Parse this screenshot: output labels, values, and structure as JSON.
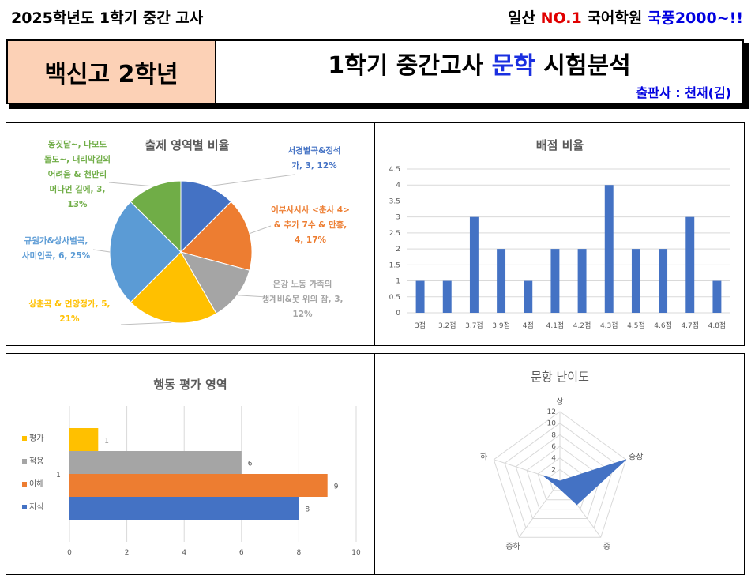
{
  "top": {
    "left_text": "2025학년도 1학기 중간 고사",
    "right_prefix": "일산 ",
    "right_brand": "NO.1",
    "right_mid": " 국어학원 ",
    "right_name": "국풍2000~!!"
  },
  "header": {
    "school": "백신고 2학년",
    "title_prefix": "1학기 중간고사 ",
    "title_subject": "문학",
    "title_suffix": " 시험분석",
    "publisher": "출판사 : 천재(김)"
  },
  "colors": {
    "blue": "#4472c4",
    "orange": "#ed7d31",
    "gray": "#a5a5a5",
    "yellow": "#ffc000",
    "lightblue": "#5b9bd5",
    "green": "#70ad47"
  },
  "chart_data": [
    {
      "type": "pie",
      "title": "출제 영역별 비율",
      "slices": [
        {
          "label_lines": [
            "서경별곡&정석",
            "가, 3, 12%"
          ],
          "value": 3,
          "color": "#4472c4"
        },
        {
          "label_lines": [
            "어부사시사 <춘사 4>",
            "& 추가 7수 & 만흥,",
            "4, 17%"
          ],
          "value": 4,
          "color": "#ed7d31"
        },
        {
          "label_lines": [
            "은강 노동 가족의",
            "생계비&못 위의 잠, 3,",
            "12%"
          ],
          "value": 3,
          "color": "#a5a5a5"
        },
        {
          "label_lines": [
            "상춘곡 & 면앙정가, 5,",
            "21%"
          ],
          "value": 5,
          "color": "#ffc000"
        },
        {
          "label_lines": [
            "규원가&상사별곡,",
            "사미인곡, 6, 25%"
          ],
          "value": 6,
          "color": "#5b9bd5"
        },
        {
          "label_lines": [
            "동짓달~, 나모도",
            "돌도~, 내리막길의",
            "어려움 & 천만리",
            "머나먼 길에, 3,",
            "13%"
          ],
          "value": 3,
          "color": "#70ad47"
        }
      ]
    },
    {
      "type": "bar",
      "title": "배점 비율",
      "categories": [
        "3점",
        "3.2점",
        "3.7점",
        "3.9점",
        "4점",
        "4.1점",
        "4.2점",
        "4.3점",
        "4.5점",
        "4.6점",
        "4.7점",
        "4.8점"
      ],
      "values": [
        1,
        1,
        3,
        2,
        1,
        2,
        2,
        4,
        2,
        2,
        3,
        1
      ],
      "ylim": [
        0,
        4.5
      ],
      "yticks": [
        "0",
        "0.5",
        "1",
        "1.5",
        "2",
        "2.5",
        "3",
        "3.5",
        "4",
        "4.5"
      ],
      "grid": true
    },
    {
      "type": "bar",
      "orientation": "horizontal",
      "title": "행동 평가 영역",
      "category": "1",
      "series": [
        {
          "name": "평가",
          "value": 1,
          "color": "#ffc000"
        },
        {
          "name": "적용",
          "value": 6,
          "color": "#a5a5a5"
        },
        {
          "name": "이해",
          "value": 9,
          "color": "#ed7d31"
        },
        {
          "name": "지식",
          "value": 8,
          "color": "#4472c4"
        }
      ],
      "xlim": [
        0,
        10
      ],
      "xticks": [
        "0",
        "2",
        "4",
        "6",
        "8",
        "10"
      ],
      "legend": "left"
    },
    {
      "type": "radar",
      "title": "문항 난이도",
      "axes": [
        "상",
        "중상",
        "중",
        "중하",
        "하"
      ],
      "values": [
        0,
        12,
        5,
        1,
        3
      ],
      "rlim": [
        0,
        12
      ],
      "rticks": [
        "0",
        "2",
        "4",
        "6",
        "8",
        "10",
        "12"
      ]
    }
  ]
}
